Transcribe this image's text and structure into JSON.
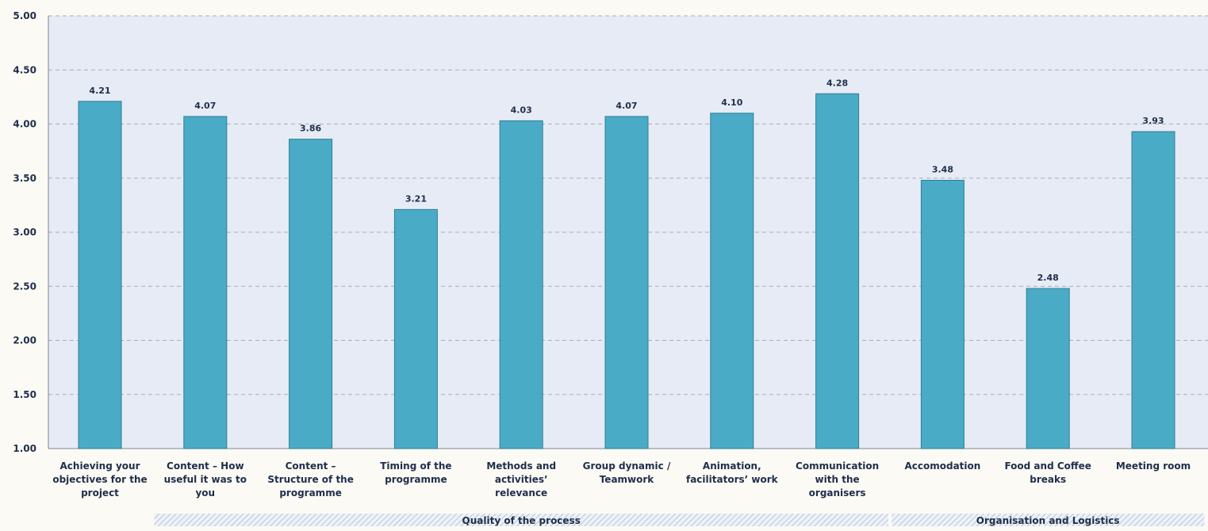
{
  "chart_data": {
    "type": "bar",
    "title": "",
    "xlabel": "",
    "ylabel": "",
    "ylim": [
      1.0,
      5.0
    ],
    "yticks": [
      1.0,
      1.5,
      2.0,
      2.5,
      3.0,
      3.5,
      4.0,
      4.5,
      5.0
    ],
    "ytick_labels": [
      "1.00",
      "1.50",
      "2.00",
      "2.50",
      "3.00",
      "3.50",
      "4.00",
      "4.50",
      "5.00"
    ],
    "grid": true,
    "categories": [
      [
        "Achieving your",
        "objectives for the",
        "project"
      ],
      [
        "Content – How",
        "useful it was to",
        "you"
      ],
      [
        "Content –",
        "Structure of the",
        "programme"
      ],
      [
        "Timing of the",
        "programme"
      ],
      [
        "Methods and",
        "activities’",
        "relevance"
      ],
      [
        "Group dynamic /",
        "Teamwork"
      ],
      [
        "Animation,",
        "facilitators’ work"
      ],
      [
        "Communication",
        "with the",
        "organisers"
      ],
      [
        "Accomodation"
      ],
      [
        "Food and Coffee",
        "breaks"
      ],
      [
        "Meeting room"
      ]
    ],
    "values": [
      4.21,
      4.07,
      3.86,
      3.21,
      4.03,
      4.07,
      4.1,
      4.28,
      3.48,
      2.48,
      3.93
    ],
    "value_labels": [
      "4.21",
      "4.07",
      "3.86",
      "3.21",
      "4.03",
      "4.07",
      "4.10",
      "4.28",
      "3.48",
      "2.48",
      "3.93"
    ],
    "groups": [
      {
        "label": "Quality of the process",
        "from": 1,
        "to": 7
      },
      {
        "label": "Organisation  and  Logistics",
        "from": 8,
        "to": 10
      }
    ],
    "colors": {
      "bar_fill": "#4aabc6",
      "bar_stroke": "#2f7f95",
      "plot_bg": "#e6ebf5",
      "grid": "#a9aebb",
      "text": "#1f2e4a"
    }
  }
}
